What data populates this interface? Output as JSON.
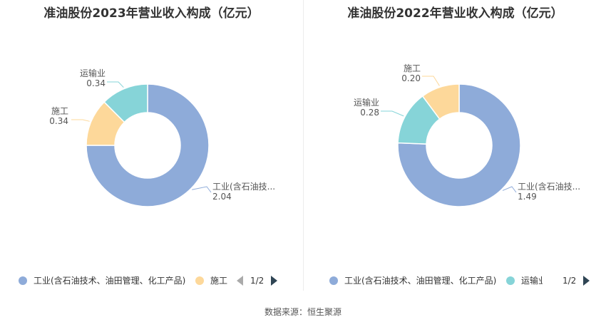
{
  "source": "数据来源：恒生聚源",
  "chart_data": [
    {
      "type": "pie",
      "title": "准油股份2023年营业收入构成（亿元）",
      "series": [
        {
          "name": "工业(含石油技术、油田管理、化工产品)",
          "label": "工业(含石油技...",
          "value": 2.04,
          "value_label": "2.04",
          "color": "#8eabd9"
        },
        {
          "name": "施工",
          "label": "施工",
          "value": 0.34,
          "value_label": "0.34",
          "color": "#fdd89a"
        },
        {
          "name": "运输业",
          "label": "运输业",
          "value": 0.34,
          "value_label": "0.34",
          "color": "#86d4d8"
        }
      ],
      "legend": {
        "items": [
          {
            "label": "工业(含石油技术、油田管理、化工产品)",
            "color": "#8eabd9"
          },
          {
            "label": "施工",
            "color": "#fdd89a"
          }
        ],
        "page": "1/2"
      }
    },
    {
      "type": "pie",
      "title": "准油股份2022年营业收入构成（亿元）",
      "series": [
        {
          "name": "工业(含石油技术、油田管理、化工产品)",
          "label": "工业(含石油技...",
          "value": 1.49,
          "value_label": "1.49",
          "color": "#8eabd9"
        },
        {
          "name": "运输业",
          "label": "运输业",
          "value": 0.28,
          "value_label": "0.28",
          "color": "#86d4d8"
        },
        {
          "name": "施工",
          "label": "施工",
          "value": 0.2,
          "value_label": "0.20",
          "color": "#fdd89a"
        }
      ],
      "legend": {
        "items": [
          {
            "label": "工业(含石油技术、油田管理、化工产品)",
            "color": "#8eabd9"
          },
          {
            "label": "运输业",
            "color": "#86d4d8"
          }
        ],
        "page": "1/2"
      }
    }
  ]
}
